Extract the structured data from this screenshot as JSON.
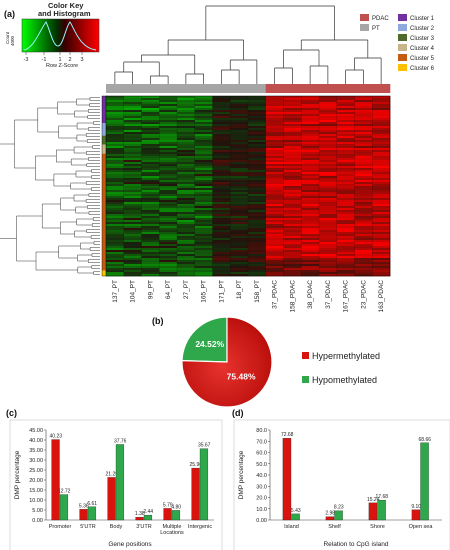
{
  "panels": {
    "a": "(a)",
    "b": "(b)",
    "c": "(c)",
    "d": "(d)"
  },
  "color_key": {
    "title_line1": "Color Key",
    "title_line2": "and Histogram",
    "ylabel": "Count",
    "ytick": "4000",
    "ytick0": "0",
    "xticks": [
      "-3",
      "-1",
      "1",
      "2",
      "3"
    ],
    "xlabel": "Row Z-Score"
  },
  "heatmap": {
    "legend_groups": [
      {
        "name": "PDAC",
        "color": "#c0504d"
      },
      {
        "name": "PT",
        "color": "#a6a6a6"
      }
    ],
    "legend_clusters": [
      {
        "name": "Cluster 1",
        "color": "#7030a0"
      },
      {
        "name": "Cluster 2",
        "color": "#8ea9db"
      },
      {
        "name": "Cluster 3",
        "color": "#4e6b2b"
      },
      {
        "name": "Cluster 4",
        "color": "#c9b48a"
      },
      {
        "name": "Cluster 5",
        "color": "#c55a11"
      },
      {
        "name": "Cluster 6",
        "color": "#ffc000"
      }
    ],
    "samples": [
      "137_PT",
      "104_PT",
      "99_PT",
      "64_PT",
      "27_PT",
      "165_PT",
      "171_PT",
      "18_PT",
      "158_PT",
      "37_PDAC",
      "158_PDAC",
      "38_PDAC",
      "37_PDAC",
      "167_PDAC",
      "23_PDAC",
      "163_PDAC"
    ],
    "sample_groups": [
      "PT",
      "PT",
      "PT",
      "PT",
      "PT",
      "PT",
      "PT",
      "PT",
      "PT",
      "PDAC",
      "PDAC",
      "PDAC",
      "PDAC",
      "PDAC",
      "PDAC",
      "PDAC"
    ]
  },
  "chart_data": [
    {
      "type": "pie",
      "slices": [
        {
          "name": "Hypermethylated",
          "value": 75.48,
          "label": "75.48%",
          "color": "#d9140f"
        },
        {
          "name": "Hypomethylated",
          "value": 24.52,
          "label": "24.52%",
          "color": "#2ea84a"
        }
      ],
      "legend": "right"
    },
    {
      "type": "bar",
      "categories": [
        "Promoter",
        "5'UTR",
        "Body",
        "3'UTR",
        "Multiple Locations",
        "Intergenic"
      ],
      "series": [
        {
          "values": [
            40.23,
            5.36,
            21.29,
            1.38,
            5.79,
            25.96
          ],
          "color": "#d9140f"
        },
        {
          "values": [
            12.72,
            6.61,
            37.76,
            2.44,
            4.8,
            35.67
          ],
          "color": "#2ea84a"
        }
      ],
      "value_labels": [
        [
          "40.23",
          "5.36",
          "21.29",
          "1.38",
          "5.79",
          "25.96"
        ],
        [
          "12.72",
          "6.61",
          "37.76",
          "2.44",
          "4.80",
          "35.67"
        ]
      ],
      "xlabel": "Gene positions",
      "ylabel": "DMP percentage",
      "ylim": [
        0,
        45
      ],
      "yticks": [
        "0.00",
        "5.00",
        "10.00",
        "15.00",
        "20.00",
        "25.00",
        "30.00",
        "35.00",
        "40.00",
        "45.00"
      ]
    },
    {
      "type": "bar",
      "categories": [
        "Island",
        "Shelf",
        "Shore",
        "Open sea"
      ],
      "series": [
        {
          "values": [
            72.68,
            2.98,
            15.24,
            9.1
          ],
          "color": "#d9140f"
        },
        {
          "values": [
            5.43,
            8.23,
            17.68,
            68.66
          ],
          "color": "#2ea84a"
        }
      ],
      "value_labels": [
        [
          "72.68",
          "2.98",
          "15.24",
          "9.10"
        ],
        [
          "5.43",
          "8.23",
          "17.68",
          "68.66"
        ]
      ],
      "xlabel": "Relation to CpG island",
      "ylabel": "DMP percentage",
      "ylim": [
        0,
        80
      ],
      "yticks": [
        "0.00",
        "10.0",
        "20.0",
        "30.0",
        "40.0",
        "50.0",
        "60.0",
        "70.0",
        "80.0"
      ]
    }
  ]
}
